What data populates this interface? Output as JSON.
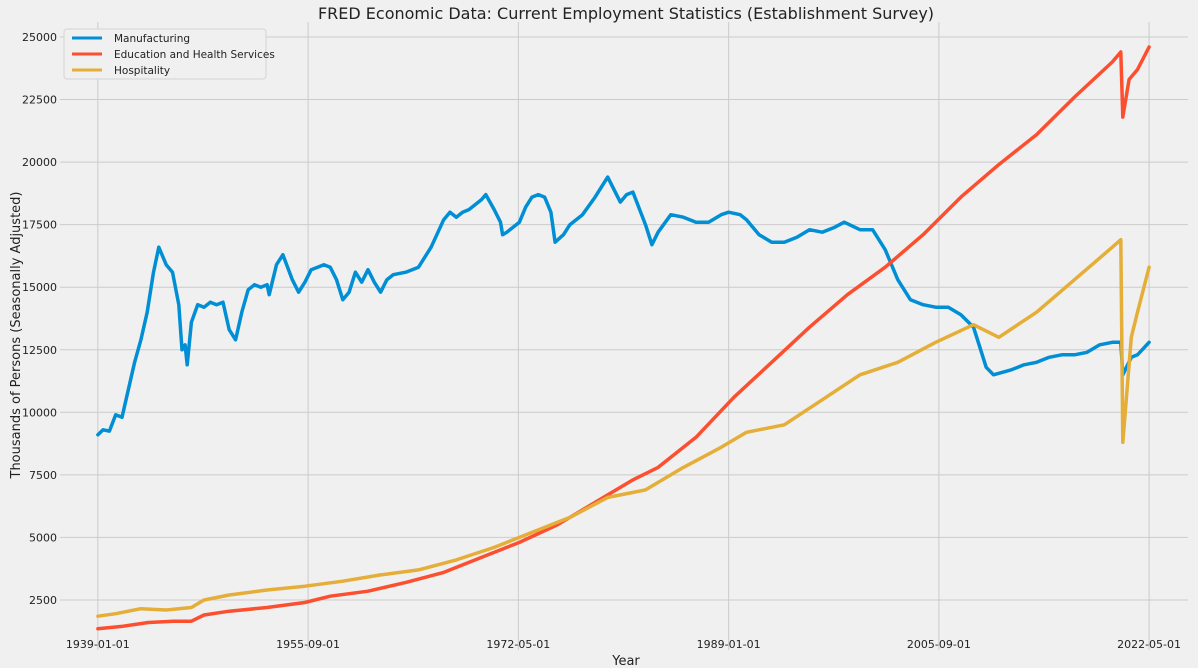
{
  "chart_data": {
    "type": "line",
    "title": "FRED Economic Data: Current Employment Statistics (Establishment Survey)",
    "xlabel": "Year",
    "ylabel": "Thousands of Persons (Seasonally Adjusted)",
    "x_ticks": [
      "1939-01-01",
      "1955-09-01",
      "1972-05-01",
      "1989-01-01",
      "2005-09-01",
      "2022-05-01"
    ],
    "y_ticks": [
      2500,
      5000,
      7500,
      10000,
      12500,
      15000,
      17500,
      20000,
      22500,
      25000
    ],
    "xlim": [
      "1936-01-01",
      "2025-06-01"
    ],
    "ylim": [
      500,
      25600
    ],
    "grid": true,
    "legend_position": "top-left",
    "series": [
      {
        "name": "Manufacturing",
        "color": "#008fd5",
        "points": [
          [
            "1939-01-01",
            9100
          ],
          [
            "1939-06-01",
            9300
          ],
          [
            "1939-12-01",
            9250
          ],
          [
            "1940-06-01",
            9900
          ],
          [
            "1940-12-01",
            9800
          ],
          [
            "1941-06-01",
            10900
          ],
          [
            "1941-12-01",
            12000
          ],
          [
            "1942-06-01",
            12900
          ],
          [
            "1942-12-01",
            14000
          ],
          [
            "1943-06-01",
            15600
          ],
          [
            "1943-11-01",
            16600
          ],
          [
            "1944-06-01",
            15900
          ],
          [
            "1944-12-01",
            15600
          ],
          [
            "1945-06-01",
            14300
          ],
          [
            "1945-09-01",
            12500
          ],
          [
            "1945-12-01",
            12700
          ],
          [
            "1946-02-01",
            11900
          ],
          [
            "1946-06-01",
            13600
          ],
          [
            "1946-12-01",
            14300
          ],
          [
            "1947-06-01",
            14200
          ],
          [
            "1947-12-01",
            14400
          ],
          [
            "1948-06-01",
            14300
          ],
          [
            "1948-12-01",
            14400
          ],
          [
            "1949-06-01",
            13300
          ],
          [
            "1949-12-01",
            12900
          ],
          [
            "1950-06-01",
            14000
          ],
          [
            "1950-12-01",
            14900
          ],
          [
            "1951-06-01",
            15100
          ],
          [
            "1951-12-01",
            15000
          ],
          [
            "1952-06-01",
            15100
          ],
          [
            "1952-08-01",
            14700
          ],
          [
            "1953-03-01",
            15900
          ],
          [
            "1953-09-01",
            16300
          ],
          [
            "1954-06-01",
            15300
          ],
          [
            "1954-12-01",
            14800
          ],
          [
            "1955-06-01",
            15200
          ],
          [
            "1955-12-01",
            15700
          ],
          [
            "1956-06-01",
            15800
          ],
          [
            "1956-12-01",
            15900
          ],
          [
            "1957-06-01",
            15800
          ],
          [
            "1957-12-01",
            15300
          ],
          [
            "1958-06-01",
            14500
          ],
          [
            "1958-12-01",
            14800
          ],
          [
            "1959-06-01",
            15600
          ],
          [
            "1959-12-01",
            15200
          ],
          [
            "1960-06-01",
            15700
          ],
          [
            "1960-12-01",
            15200
          ],
          [
            "1961-06-01",
            14800
          ],
          [
            "1961-12-01",
            15300
          ],
          [
            "1962-06-01",
            15500
          ],
          [
            "1963-06-01",
            15600
          ],
          [
            "1964-06-01",
            15800
          ],
          [
            "1965-06-01",
            16600
          ],
          [
            "1966-06-01",
            17700
          ],
          [
            "1966-12-01",
            18000
          ],
          [
            "1967-06-01",
            17800
          ],
          [
            "1967-12-01",
            18000
          ],
          [
            "1968-06-01",
            18100
          ],
          [
            "1969-06-01",
            18500
          ],
          [
            "1969-10-01",
            18700
          ],
          [
            "1970-06-01",
            18100
          ],
          [
            "1970-12-01",
            17600
          ],
          [
            "1971-02-01",
            17100
          ],
          [
            "1971-06-01",
            17200
          ],
          [
            "1972-06-01",
            17600
          ],
          [
            "1972-12-01",
            18200
          ],
          [
            "1973-06-01",
            18600
          ],
          [
            "1973-12-01",
            18700
          ],
          [
            "1974-06-01",
            18600
          ],
          [
            "1974-12-01",
            18000
          ],
          [
            "1975-04-01",
            16800
          ],
          [
            "1975-12-01",
            17100
          ],
          [
            "1976-06-01",
            17500
          ],
          [
            "1977-06-01",
            17900
          ],
          [
            "1978-06-01",
            18600
          ],
          [
            "1979-06-01",
            19400
          ],
          [
            "1980-06-01",
            18400
          ],
          [
            "1980-12-01",
            18700
          ],
          [
            "1981-06-01",
            18800
          ],
          [
            "1982-06-01",
            17500
          ],
          [
            "1982-12-01",
            16700
          ],
          [
            "1983-06-01",
            17200
          ],
          [
            "1984-06-01",
            17900
          ],
          [
            "1985-06-01",
            17800
          ],
          [
            "1986-06-01",
            17600
          ],
          [
            "1987-06-01",
            17600
          ],
          [
            "1988-06-01",
            17900
          ],
          [
            "1989-01-01",
            18000
          ],
          [
            "1989-12-01",
            17900
          ],
          [
            "1990-06-01",
            17700
          ],
          [
            "1991-06-01",
            17100
          ],
          [
            "1992-06-01",
            16800
          ],
          [
            "1993-06-01",
            16800
          ],
          [
            "1994-06-01",
            17000
          ],
          [
            "1995-06-01",
            17300
          ],
          [
            "1996-06-01",
            17200
          ],
          [
            "1997-06-01",
            17400
          ],
          [
            "1998-03-01",
            17600
          ],
          [
            "1999-06-01",
            17300
          ],
          [
            "2000-06-01",
            17300
          ],
          [
            "2001-06-01",
            16500
          ],
          [
            "2002-06-01",
            15300
          ],
          [
            "2003-06-01",
            14500
          ],
          [
            "2004-06-01",
            14300
          ],
          [
            "2005-06-01",
            14200
          ],
          [
            "2006-06-01",
            14200
          ],
          [
            "2007-06-01",
            13900
          ],
          [
            "2008-06-01",
            13400
          ],
          [
            "2009-06-01",
            11800
          ],
          [
            "2010-01-01",
            11500
          ],
          [
            "2011-06-01",
            11700
          ],
          [
            "2012-06-01",
            11900
          ],
          [
            "2013-06-01",
            12000
          ],
          [
            "2014-06-01",
            12200
          ],
          [
            "2015-06-01",
            12300
          ],
          [
            "2016-06-01",
            12300
          ],
          [
            "2017-06-01",
            12400
          ],
          [
            "2018-06-01",
            12700
          ],
          [
            "2019-06-01",
            12800
          ],
          [
            "2020-02-01",
            12800
          ],
          [
            "2020-04-01",
            11500
          ],
          [
            "2020-12-01",
            12200
          ],
          [
            "2021-06-01",
            12300
          ],
          [
            "2022-05-01",
            12800
          ]
        ]
      },
      {
        "name": "Education and Health Services",
        "color": "#fc4f30",
        "points": [
          [
            "1939-01-01",
            1350
          ],
          [
            "1941-01-01",
            1450
          ],
          [
            "1943-01-01",
            1600
          ],
          [
            "1945-01-01",
            1650
          ],
          [
            "1946-06-01",
            1650
          ],
          [
            "1947-06-01",
            1900
          ],
          [
            "1949-06-01",
            2050
          ],
          [
            "1952-06-01",
            2200
          ],
          [
            "1955-06-01",
            2400
          ],
          [
            "1957-06-01",
            2650
          ],
          [
            "1960-06-01",
            2850
          ],
          [
            "1963-06-01",
            3200
          ],
          [
            "1966-06-01",
            3600
          ],
          [
            "1969-06-01",
            4200
          ],
          [
            "1972-06-01",
            4800
          ],
          [
            "1975-06-01",
            5500
          ],
          [
            "1978-06-01",
            6400
          ],
          [
            "1981-06-01",
            7300
          ],
          [
            "1983-06-01",
            7800
          ],
          [
            "1986-06-01",
            9000
          ],
          [
            "1989-06-01",
            10600
          ],
          [
            "1992-06-01",
            12000
          ],
          [
            "1995-06-01",
            13400
          ],
          [
            "1998-06-01",
            14700
          ],
          [
            "2001-06-01",
            15800
          ],
          [
            "2004-06-01",
            17100
          ],
          [
            "2007-06-01",
            18600
          ],
          [
            "2010-06-01",
            19900
          ],
          [
            "2013-06-01",
            21100
          ],
          [
            "2016-06-01",
            22600
          ],
          [
            "2019-06-01",
            24000
          ],
          [
            "2020-02-01",
            24400
          ],
          [
            "2020-04-01",
            21800
          ],
          [
            "2020-10-01",
            23300
          ],
          [
            "2021-06-01",
            23700
          ],
          [
            "2022-05-01",
            24600
          ]
        ]
      },
      {
        "name": "Hospitality",
        "color": "#e5ae38",
        "points": [
          [
            "1939-01-01",
            1850
          ],
          [
            "1940-06-01",
            1950
          ],
          [
            "1942-06-01",
            2150
          ],
          [
            "1944-06-01",
            2100
          ],
          [
            "1946-06-01",
            2200
          ],
          [
            "1947-06-01",
            2500
          ],
          [
            "1949-06-01",
            2700
          ],
          [
            "1952-06-01",
            2900
          ],
          [
            "1955-06-01",
            3050
          ],
          [
            "1958-06-01",
            3250
          ],
          [
            "1961-06-01",
            3500
          ],
          [
            "1964-06-01",
            3700
          ],
          [
            "1967-06-01",
            4100
          ],
          [
            "1970-06-01",
            4600
          ],
          [
            "1973-06-01",
            5200
          ],
          [
            "1976-06-01",
            5800
          ],
          [
            "1979-06-01",
            6600
          ],
          [
            "1982-06-01",
            6900
          ],
          [
            "1985-06-01",
            7800
          ],
          [
            "1988-06-01",
            8600
          ],
          [
            "1990-06-01",
            9200
          ],
          [
            "1993-06-01",
            9500
          ],
          [
            "1996-06-01",
            10500
          ],
          [
            "1999-06-01",
            11500
          ],
          [
            "2002-06-01",
            12000
          ],
          [
            "2005-06-01",
            12800
          ],
          [
            "2008-06-01",
            13500
          ],
          [
            "2010-06-01",
            13000
          ],
          [
            "2013-06-01",
            14000
          ],
          [
            "2016-06-01",
            15300
          ],
          [
            "2019-06-01",
            16600
          ],
          [
            "2020-02-01",
            16900
          ],
          [
            "2020-04-01",
            8800
          ],
          [
            "2020-12-01",
            13000
          ],
          [
            "2021-06-01",
            14000
          ],
          [
            "2022-05-01",
            15800
          ]
        ]
      }
    ]
  }
}
